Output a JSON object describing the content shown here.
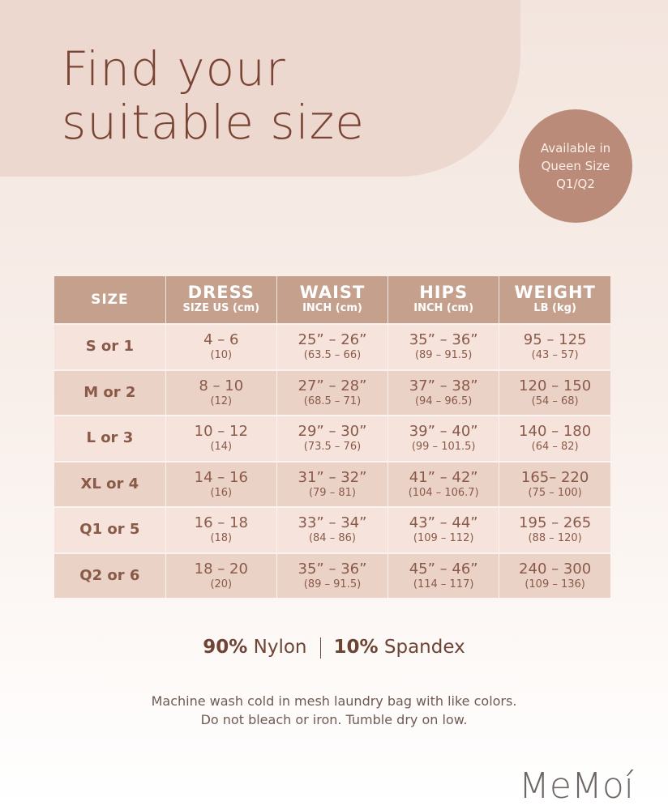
{
  "header": {
    "title_lines": [
      "Find your",
      "suitable size"
    ],
    "badge_lines": [
      "Available in",
      "Queen Size",
      "Q1/Q2"
    ]
  },
  "table": {
    "columns": [
      {
        "title": "SIZE",
        "sub": null
      },
      {
        "title": "DRESS",
        "sub": "SIZE US (cm)"
      },
      {
        "title": "WAIST",
        "sub": "INCH (cm)"
      },
      {
        "title": "HIPS",
        "sub": "INCH (cm)"
      },
      {
        "title": "WEIGHT",
        "sub": "LB (kg)"
      }
    ],
    "rows": [
      [
        {
          "main": "S or 1"
        },
        {
          "main": "4 – 6",
          "sub": "(10)"
        },
        {
          "main": "25” – 26”",
          "sub": "(63.5 – 66)"
        },
        {
          "main": "35” – 36”",
          "sub": "(89 – 91.5)"
        },
        {
          "main": "95 – 125",
          "sub": "(43 – 57)"
        }
      ],
      [
        {
          "main": "M or 2"
        },
        {
          "main": "8 – 10",
          "sub": "(12)"
        },
        {
          "main": "27” – 28”",
          "sub": "(68.5 – 71)"
        },
        {
          "main": "37” – 38”",
          "sub": "(94 – 96.5)"
        },
        {
          "main": "120 – 150",
          "sub": "(54 – 68)"
        }
      ],
      [
        {
          "main": "L or 3"
        },
        {
          "main": "10 – 12",
          "sub": "(14)"
        },
        {
          "main": "29” – 30”",
          "sub": "(73.5 – 76)"
        },
        {
          "main": "39” – 40”",
          "sub": "(99 – 101.5)"
        },
        {
          "main": "140 – 180",
          "sub": "(64 – 82)"
        }
      ],
      [
        {
          "main": "XL or 4"
        },
        {
          "main": "14 – 16",
          "sub": "(16)"
        },
        {
          "main": "31” – 32”",
          "sub": "(79 – 81)"
        },
        {
          "main": "41” – 42”",
          "sub": "(104 – 106.7)"
        },
        {
          "main": "165– 220",
          "sub": "(75 – 100)"
        }
      ],
      [
        {
          "main": "Q1 or 5"
        },
        {
          "main": "16 – 18",
          "sub": "(18)"
        },
        {
          "main": "33” – 34”",
          "sub": "(84 – 86)"
        },
        {
          "main": "43” – 44”",
          "sub": "(109 – 112)"
        },
        {
          "main": "195 – 265",
          "sub": "(88 – 120)"
        }
      ],
      [
        {
          "main": "Q2 or 6"
        },
        {
          "main": "18 – 20",
          "sub": "(20)"
        },
        {
          "main": "35” – 36”",
          "sub": "(89 – 91.5)"
        },
        {
          "main": "45” – 46”",
          "sub": "(114 – 117)"
        },
        {
          "main": "240 – 300",
          "sub": "(109 – 136)"
        }
      ]
    ]
  },
  "material": [
    {
      "percent": "90%",
      "name": "Nylon"
    },
    {
      "percent": "10%",
      "name": "Spandex"
    }
  ],
  "care_lines": [
    "Machine wash cold in mesh laundry bag with like colors.",
    "Do not bleach or iron. Tumble dry on low."
  ],
  "brand": "MeMoí"
}
